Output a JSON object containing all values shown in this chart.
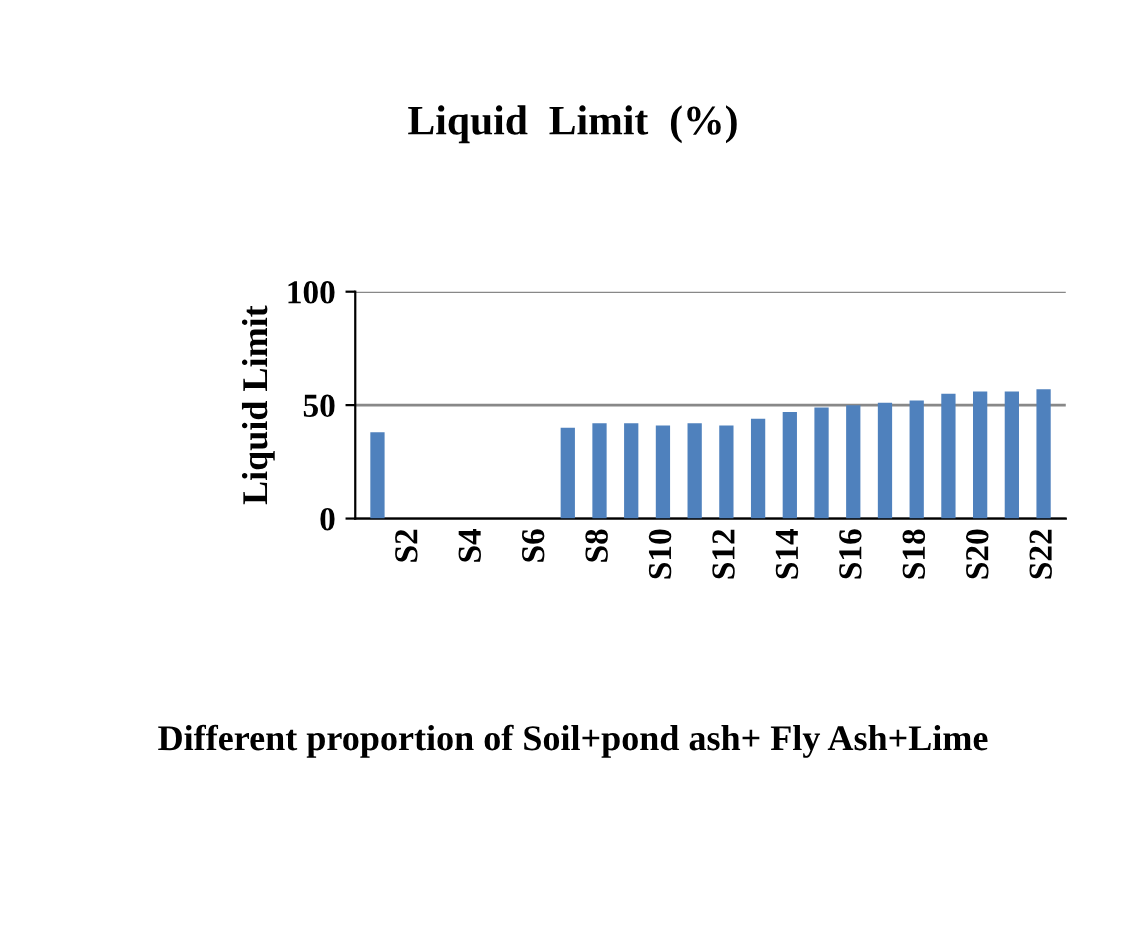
{
  "chart_data": {
    "type": "bar",
    "title": "Liquid  Limit  (%)",
    "xlabel": "Different proportion of Soil+pond ash+ Fly Ash+Lime",
    "ylabel": "Liquid Limit",
    "categories": [
      null,
      "S2",
      null,
      "S4",
      null,
      "S6",
      null,
      "S8",
      null,
      "S10",
      null,
      "S12",
      null,
      "S14",
      null,
      "S16",
      null,
      "S18",
      null,
      "S20",
      null,
      "S22"
    ],
    "values": [
      38,
      0,
      0,
      0,
      0,
      0,
      40,
      42,
      42,
      41,
      42,
      41,
      44,
      47,
      49,
      50,
      51,
      52,
      55,
      56,
      56,
      57
    ],
    "color": "#4f81bd",
    "ylim": [
      0,
      100
    ],
    "yticks": [
      0,
      50,
      100
    ],
    "grid": "y",
    "legend": false
  }
}
